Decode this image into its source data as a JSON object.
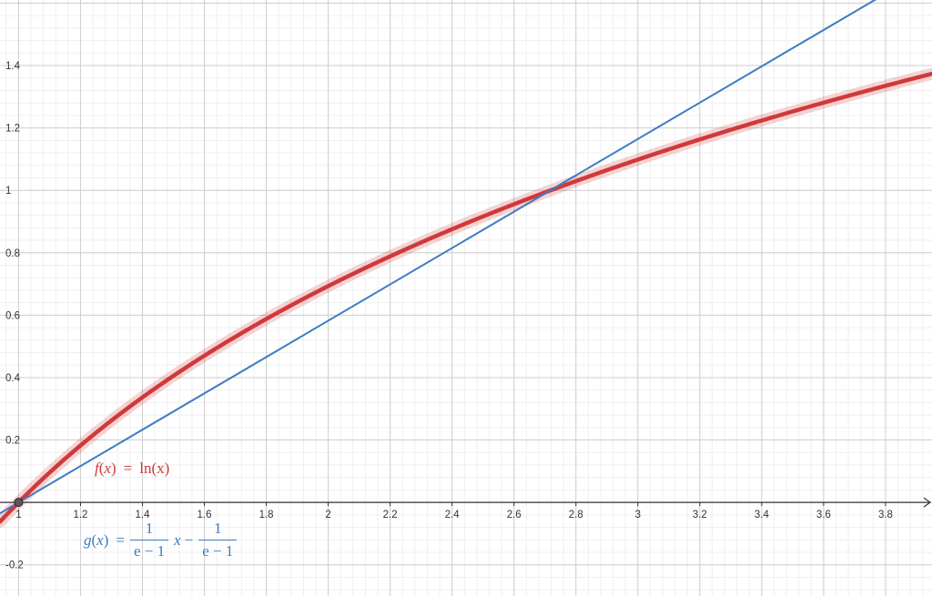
{
  "chart_data": {
    "type": "line",
    "title": "",
    "xlabel": "",
    "ylabel": "",
    "xlim": [
      0.94,
      3.95
    ],
    "ylim": [
      -0.3,
      1.61
    ],
    "grid": true,
    "minor_grid": true,
    "x_ticks": [
      1,
      1.2,
      1.4,
      1.6,
      1.8,
      2,
      2.2,
      2.4,
      2.6,
      2.8,
      3,
      3.2,
      3.4,
      3.6,
      3.8
    ],
    "x_tick_labels": [
      "1",
      "1.2",
      "1.4",
      "1.6",
      "1.8",
      "2",
      "2.2",
      "2.4",
      "2.6",
      "2.8",
      "3",
      "3.2",
      "3.4",
      "3.6",
      "3.8"
    ],
    "y_ticks": [
      -0.2,
      0.2,
      0.4,
      0.6,
      0.8,
      1,
      1.2,
      1.4
    ],
    "y_tick_labels": [
      "-0.2",
      "0.2",
      "0.4",
      "0.6",
      "0.8",
      "1",
      "1.2",
      "1.4"
    ],
    "series": [
      {
        "color": "#d0393b",
        "x": [
          0.94,
          1.0,
          1.2,
          1.4,
          1.6,
          1.8,
          2.0,
          2.2,
          2.4,
          2.6,
          2.8,
          3.0,
          3.2,
          3.4,
          3.6,
          3.8,
          3.95
        ],
        "y": [
          -0.062,
          0.0,
          0.182,
          0.336,
          0.47,
          0.588,
          0.693,
          0.788,
          0.875,
          0.956,
          1.03,
          1.099,
          1.163,
          1.224,
          1.281,
          1.335,
          1.374
        ]
      },
      {
        "color": "#3e7bc4",
        "x": [
          0.94,
          3.82
        ],
        "y": [
          -0.035,
          1.642
        ]
      }
    ],
    "points": [
      {
        "x": 1,
        "y": 0
      }
    ],
    "labels": {
      "f": {
        "lhs_func": "f",
        "lhs_var": "x",
        "eq": "=",
        "rhs": "ln(x)"
      },
      "g": {
        "lhs_func": "g",
        "lhs_var": "x",
        "eq": "=",
        "frac1_num": "1",
        "frac1_den": "e − 1",
        "var": "x",
        "minus": "−",
        "frac2_num": "1",
        "frac2_den": "e − 1"
      }
    }
  }
}
